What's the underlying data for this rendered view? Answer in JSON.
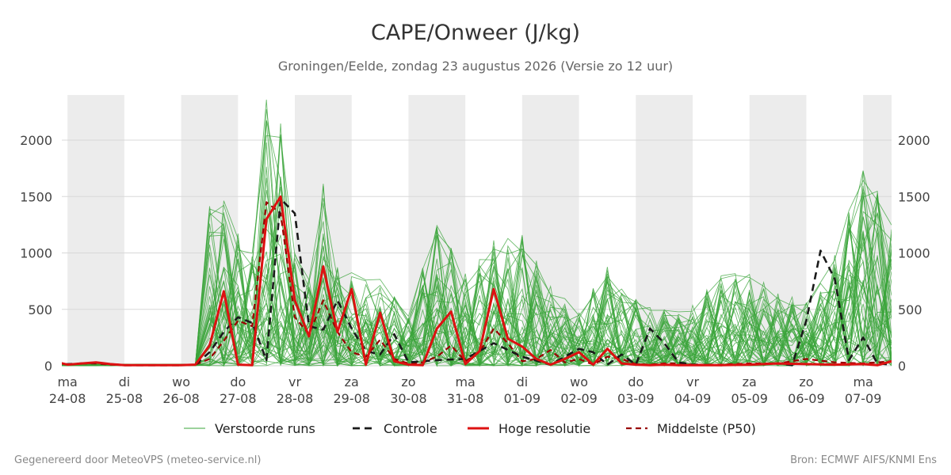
{
  "title": "CAPE/Onweer (J/kg)",
  "subtitle": "Groningen/Eelde, zondag 23 augustus 2026 (Versie zo 12 uur)",
  "footer_left": "Gegenereerd door MeteoVPS (meteo-service.nl)",
  "footer_right": "Bron: ECMWF AIFS/KNMI Ens",
  "colors": {
    "ensemble": "#3aa43a",
    "control": "#1a1a1a",
    "hires": "#dd1111",
    "median": "#990000",
    "weekend_band": "#ececec",
    "grid": "#d8d8d8"
  },
  "chart_data": {
    "type": "line",
    "title": "CAPE/Onweer (J/kg)",
    "ylim": [
      0,
      2400
    ],
    "xlim": [
      -0.1,
      14.5
    ],
    "grid": true,
    "legend_placement": "bottom",
    "y_ticks": [
      0,
      500,
      1000,
      1500,
      2000
    ],
    "x_ticks": [
      {
        "x": 0,
        "day": "ma",
        "date": "24-08"
      },
      {
        "x": 1,
        "day": "di",
        "date": "25-08"
      },
      {
        "x": 2,
        "day": "wo",
        "date": "26-08"
      },
      {
        "x": 3,
        "day": "do",
        "date": "27-08"
      },
      {
        "x": 4,
        "day": "vr",
        "date": "28-08"
      },
      {
        "x": 5,
        "day": "za",
        "date": "29-08"
      },
      {
        "x": 6,
        "day": "zo",
        "date": "30-08"
      },
      {
        "x": 7,
        "day": "ma",
        "date": "31-08"
      },
      {
        "x": 8,
        "day": "di",
        "date": "01-09"
      },
      {
        "x": 9,
        "day": "wo",
        "date": "02-09"
      },
      {
        "x": 10,
        "day": "do",
        "date": "03-09"
      },
      {
        "x": 11,
        "day": "vr",
        "date": "04-09"
      },
      {
        "x": 12,
        "day": "za",
        "date": "05-09"
      },
      {
        "x": 13,
        "day": "zo",
        "date": "06-09"
      },
      {
        "x": 14,
        "day": "ma",
        "date": "07-09"
      }
    ],
    "shaded_bands": [
      [
        0,
        1
      ],
      [
        2,
        3
      ],
      [
        4,
        5
      ],
      [
        6,
        7
      ],
      [
        8,
        9
      ],
      [
        10,
        11
      ],
      [
        12,
        13
      ],
      [
        14,
        14.5
      ]
    ],
    "legend": [
      {
        "key": "ensemble",
        "label": "Verstoorde runs"
      },
      {
        "key": "control",
        "label": "Controle"
      },
      {
        "key": "hires",
        "label": "Hoge resolutie"
      },
      {
        "key": "median",
        "label": "Middelste (P50)"
      }
    ],
    "series": [
      {
        "key": "control",
        "name": "Controle",
        "style": "dashed",
        "x": [
          -0.25,
          0,
          0.25,
          0.5,
          0.75,
          1,
          1.5,
          2,
          2.25,
          2.5,
          2.75,
          3,
          3.25,
          3.5,
          3.75,
          4,
          4.25,
          4.5,
          4.75,
          5,
          5.25,
          5.5,
          5.75,
          6,
          6.5,
          7,
          7.5,
          8,
          8.5,
          9,
          9.25,
          9.5,
          9.75,
          10,
          10.25,
          10.5,
          10.75,
          11,
          11.5,
          12,
          12.5,
          12.75,
          13,
          13.25,
          13.5,
          13.75,
          14,
          14.25,
          14.5
        ],
        "y": [
          10,
          15,
          20,
          25,
          15,
          5,
          5,
          5,
          10,
          120,
          300,
          430,
          380,
          50,
          1480,
          1350,
          350,
          320,
          580,
          330,
          130,
          100,
          280,
          30,
          50,
          60,
          200,
          80,
          10,
          150,
          120,
          10,
          100,
          10,
          330,
          200,
          30,
          10,
          5,
          10,
          20,
          5,
          400,
          1020,
          770,
          50,
          250,
          20,
          10
        ]
      },
      {
        "key": "hires",
        "name": "Hoge resolutie",
        "style": "solid",
        "x": [
          -0.25,
          0,
          0.25,
          0.5,
          0.75,
          1,
          1.5,
          2,
          2.25,
          2.5,
          2.75,
          3,
          3.25,
          3.5,
          3.75,
          4,
          4.25,
          4.5,
          4.75,
          5,
          5.25,
          5.5,
          5.75,
          6,
          6.25,
          6.5,
          6.75,
          7,
          7.25,
          7.5,
          7.75,
          8,
          8.25,
          8.5,
          8.75,
          9,
          9.25,
          9.5,
          9.75,
          10,
          10.25,
          10.5,
          10.75,
          11,
          11.5,
          12,
          12.5,
          13,
          13.5,
          14,
          14.25,
          14.5
        ],
        "y": [
          40,
          10,
          20,
          30,
          15,
          5,
          5,
          5,
          10,
          180,
          660,
          10,
          5,
          1300,
          1500,
          580,
          260,
          880,
          300,
          680,
          10,
          470,
          40,
          10,
          5,
          330,
          480,
          15,
          130,
          680,
          240,
          170,
          60,
          10,
          60,
          120,
          10,
          150,
          20,
          10,
          5,
          10,
          5,
          5,
          5,
          10,
          20,
          15,
          10,
          15,
          5,
          40
        ]
      },
      {
        "key": "median",
        "name": "Middelste (P50)",
        "style": "dashed",
        "x": [
          -0.25,
          0,
          0.25,
          0.5,
          0.75,
          1,
          1.5,
          2,
          2.25,
          2.5,
          2.75,
          3,
          3.25,
          3.5,
          3.75,
          4,
          4.25,
          4.5,
          4.75,
          5,
          5.25,
          5.5,
          5.75,
          6,
          6.25,
          6.5,
          6.75,
          7,
          7.25,
          7.5,
          7.75,
          8,
          8.25,
          8.5,
          8.75,
          9,
          9.25,
          9.5,
          9.75,
          10,
          10.25,
          10.5,
          10.75,
          11,
          11.5,
          12,
          12.5,
          13,
          13.5,
          14,
          14.5
        ],
        "y": [
          30,
          10,
          20,
          20,
          10,
          5,
          5,
          5,
          10,
          60,
          220,
          400,
          350,
          1450,
          1350,
          430,
          280,
          580,
          300,
          120,
          80,
          230,
          60,
          20,
          30,
          80,
          180,
          40,
          120,
          330,
          200,
          40,
          60,
          140,
          30,
          60,
          10,
          80,
          60,
          15,
          10,
          20,
          20,
          10,
          10,
          20,
          20,
          60,
          30,
          20,
          40
        ]
      }
    ],
    "ensemble_members": 50,
    "ensemble_envelope": {
      "x": [
        2.75,
        3,
        3.25,
        3.5,
        3.75,
        4,
        4.25,
        4.5,
        4.75,
        5,
        5.5,
        6,
        6.5,
        7,
        7.5,
        8,
        8.5,
        9,
        9.5,
        10,
        10.5,
        11,
        11.5,
        12,
        12.5,
        13,
        13.5,
        14,
        14.5
      ],
      "y": [
        1470,
        1180,
        1040,
        2400,
        2350,
        1000,
        780,
        1620,
        880,
        840,
        820,
        450,
        1340,
        820,
        1120,
        1170,
        720,
        480,
        900,
        590,
        500,
        560,
        800,
        840,
        640,
        580,
        1020,
        1780,
        1320
      ]
    }
  }
}
